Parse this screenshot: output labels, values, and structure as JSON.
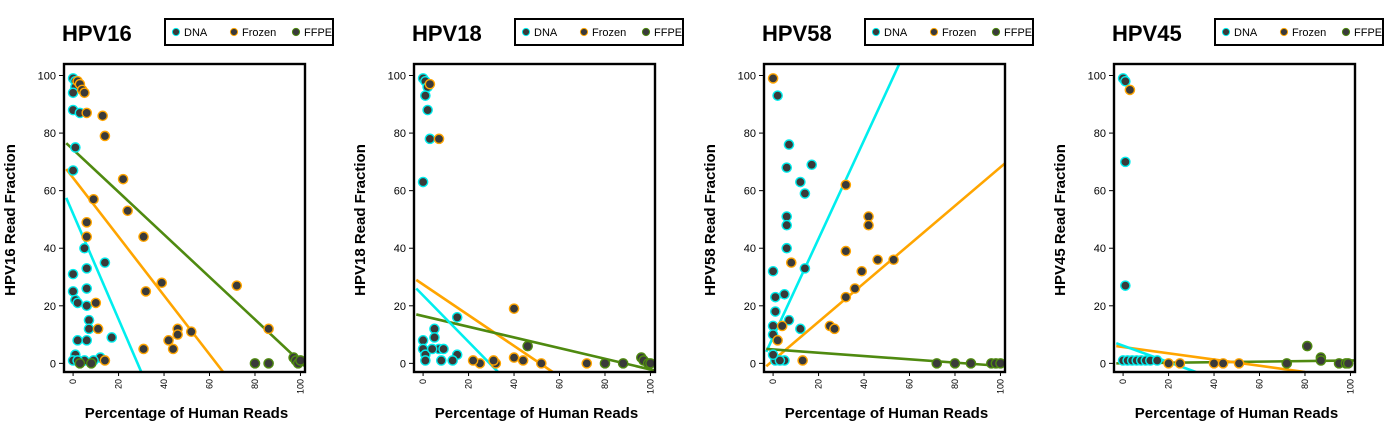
{
  "colors": {
    "DNA": "#00eeee",
    "Frozen": "#ffa500",
    "FFPE": "#4f8a10",
    "point_fill": "#3a3a3a"
  },
  "chart_data": [
    {
      "type": "scatter",
      "title": "HPV16",
      "xlabel": "Percentage of Human Reads",
      "ylabel": "HPV16 Read Fraction",
      "xlim": [
        -4,
        102
      ],
      "ylim": [
        -3,
        104
      ],
      "xticks": [
        0,
        20,
        40,
        60,
        80,
        100
      ],
      "yticks": [
        0,
        20,
        40,
        60,
        80,
        100
      ],
      "legend": [
        "DNA",
        "Frozen",
        "FFPE"
      ],
      "series": [
        {
          "name": "DNA",
          "points": [
            [
              0,
              99
            ],
            [
              1,
              98
            ],
            [
              1,
              96
            ],
            [
              0,
              94
            ],
            [
              0,
              88
            ],
            [
              3,
              87
            ],
            [
              1,
              75
            ],
            [
              0,
              67
            ],
            [
              0,
              31
            ],
            [
              0,
              25
            ],
            [
              1,
              22
            ],
            [
              2,
              21
            ],
            [
              2,
              8
            ],
            [
              1,
              3
            ],
            [
              0,
              1
            ],
            [
              5,
              40
            ],
            [
              6,
              33
            ],
            [
              6,
              26
            ],
            [
              6,
              20
            ],
            [
              7,
              15
            ],
            [
              7,
              12
            ],
            [
              6,
              8
            ],
            [
              5,
              1
            ],
            [
              14,
              35
            ],
            [
              12,
              2
            ],
            [
              17,
              9
            ],
            [
              9,
              1
            ],
            [
              2,
              1
            ]
          ]
        },
        {
          "name": "Frozen",
          "points": [
            [
              2,
              98
            ],
            [
              3,
              97
            ],
            [
              4,
              95
            ],
            [
              5,
              94
            ],
            [
              6,
              87
            ],
            [
              13,
              86
            ],
            [
              14,
              79
            ],
            [
              9,
              57
            ],
            [
              6,
              49
            ],
            [
              6,
              44
            ],
            [
              10,
              21
            ],
            [
              11,
              12
            ],
            [
              22,
              64
            ],
            [
              24,
              53
            ],
            [
              31,
              44
            ],
            [
              32,
              25
            ],
            [
              31,
              5
            ],
            [
              39,
              28
            ],
            [
              42,
              8
            ],
            [
              44,
              5
            ],
            [
              46,
              12
            ],
            [
              46,
              10
            ],
            [
              52,
              11
            ],
            [
              72,
              27
            ],
            [
              86,
              12
            ],
            [
              14,
              1
            ]
          ]
        },
        {
          "name": "FFPE",
          "points": [
            [
              80,
              0
            ],
            [
              86,
              0
            ],
            [
              97,
              2
            ],
            [
              98,
              1
            ],
            [
              99,
              0
            ],
            [
              100,
              1
            ],
            [
              8,
              0
            ],
            [
              3,
              0
            ]
          ]
        }
      ],
      "fits": [
        {
          "name": "FFPE",
          "x": [
            -3,
            102
          ],
          "y": [
            76.5,
            -1
          ]
        },
        {
          "name": "Frozen",
          "x": [
            -3,
            66
          ],
          "y": [
            67.5,
            -3
          ]
        },
        {
          "name": "DNA",
          "x": [
            -3,
            30
          ],
          "y": [
            57.5,
            -3
          ]
        }
      ]
    },
    {
      "type": "scatter",
      "title": "HPV18",
      "xlabel": "Percentage of Human Reads",
      "ylabel": "HPV18 Read Fraction",
      "xlim": [
        -4,
        102
      ],
      "ylim": [
        -3,
        104
      ],
      "xticks": [
        0,
        20,
        40,
        60,
        80,
        100
      ],
      "yticks": [
        0,
        20,
        40,
        60,
        80,
        100
      ],
      "legend": [
        "DNA",
        "Frozen",
        "FFPE"
      ],
      "series": [
        {
          "name": "DNA",
          "points": [
            [
              0,
              99
            ],
            [
              1,
              98
            ],
            [
              2,
              96
            ],
            [
              1,
              93
            ],
            [
              2,
              88
            ],
            [
              3,
              78
            ],
            [
              0,
              63
            ],
            [
              5,
              12
            ],
            [
              5,
              9
            ],
            [
              0,
              8
            ],
            [
              0,
              5
            ],
            [
              1,
              3
            ],
            [
              1,
              1
            ],
            [
              7,
              5
            ],
            [
              9,
              5
            ],
            [
              15,
              3
            ],
            [
              13,
              1
            ],
            [
              15,
              16
            ],
            [
              4,
              5
            ],
            [
              8,
              1
            ]
          ]
        },
        {
          "name": "Frozen",
          "points": [
            [
              7,
              78
            ],
            [
              3,
              97
            ],
            [
              40,
              19
            ],
            [
              44,
              1
            ],
            [
              40,
              2
            ],
            [
              52,
              0
            ],
            [
              32,
              0
            ],
            [
              31,
              1
            ],
            [
              25,
              0
            ],
            [
              22,
              1
            ],
            [
              72,
              0
            ]
          ]
        },
        {
          "name": "FFPE",
          "points": [
            [
              46,
              6
            ],
            [
              80,
              0
            ],
            [
              96,
              2
            ],
            [
              97,
              1
            ],
            [
              99,
              0
            ],
            [
              100,
              0
            ],
            [
              88,
              0
            ]
          ]
        }
      ],
      "fits": [
        {
          "name": "Frozen",
          "x": [
            -3,
            57
          ],
          "y": [
            29,
            -3
          ]
        },
        {
          "name": "FFPE",
          "x": [
            -3,
            102
          ],
          "y": [
            17,
            -2.5
          ]
        },
        {
          "name": "DNA",
          "x": [
            -3,
            33
          ],
          "y": [
            26,
            -3
          ]
        }
      ]
    },
    {
      "type": "scatter",
      "title": "HPV58",
      "xlabel": "Percentage of Human Reads",
      "ylabel": "HPV58 Read Fraction",
      "xlim": [
        -4,
        102
      ],
      "ylim": [
        -3,
        104
      ],
      "xticks": [
        0,
        20,
        40,
        60,
        80,
        100
      ],
      "yticks": [
        0,
        20,
        40,
        60,
        80,
        100
      ],
      "legend": [
        "DNA",
        "Frozen",
        "FFPE"
      ],
      "series": [
        {
          "name": "DNA",
          "points": [
            [
              2,
              93
            ],
            [
              7,
              76
            ],
            [
              12,
              63
            ],
            [
              6,
              68
            ],
            [
              14,
              59
            ],
            [
              17,
              69
            ],
            [
              6,
              51
            ],
            [
              6,
              48
            ],
            [
              6,
              40
            ],
            [
              0,
              32
            ],
            [
              7,
              15
            ],
            [
              1,
              23
            ],
            [
              1,
              18
            ],
            [
              5,
              24
            ],
            [
              12,
              12
            ],
            [
              14,
              33
            ],
            [
              0,
              13
            ],
            [
              0,
              10
            ],
            [
              1,
              1
            ],
            [
              5,
              1
            ],
            [
              3,
              1
            ],
            [
              0,
              3
            ]
          ]
        },
        {
          "name": "Frozen",
          "points": [
            [
              0,
              99
            ],
            [
              32,
              62
            ],
            [
              32,
              39
            ],
            [
              42,
              51
            ],
            [
              42,
              48
            ],
            [
              39,
              32
            ],
            [
              36,
              26
            ],
            [
              32,
              23
            ],
            [
              25,
              13
            ],
            [
              27,
              12
            ],
            [
              46,
              36
            ],
            [
              53,
              36
            ],
            [
              8,
              35
            ],
            [
              4,
              13
            ],
            [
              2,
              8
            ],
            [
              13,
              1
            ]
          ]
        },
        {
          "name": "FFPE",
          "points": [
            [
              72,
              0
            ],
            [
              80,
              0
            ],
            [
              87,
              0
            ],
            [
              96,
              0
            ],
            [
              98,
              0
            ],
            [
              100,
              0
            ]
          ]
        }
      ],
      "fits": [
        {
          "name": "DNA",
          "x": [
            -3,
            55.5
          ],
          "y": [
            4,
            104
          ]
        },
        {
          "name": "Frozen",
          "x": [
            -3,
            102
          ],
          "y": [
            -1,
            69.5
          ]
        },
        {
          "name": "FFPE",
          "x": [
            -3,
            102
          ],
          "y": [
            5,
            -1
          ]
        }
      ]
    },
    {
      "type": "scatter",
      "title": "HPV45",
      "xlabel": "Percentage of Human Reads",
      "ylabel": "HPV45 Read Fraction",
      "xlim": [
        -4,
        102
      ],
      "ylim": [
        -3,
        104
      ],
      "xticks": [
        0,
        20,
        40,
        60,
        80,
        100
      ],
      "yticks": [
        0,
        20,
        40,
        60,
        80,
        100
      ],
      "legend": [
        "DNA",
        "Frozen",
        "FFPE"
      ],
      "series": [
        {
          "name": "DNA",
          "points": [
            [
              0,
              99
            ],
            [
              1,
              98
            ],
            [
              1,
              70
            ],
            [
              1,
              27
            ],
            [
              0,
              1
            ],
            [
              2,
              1
            ],
            [
              4,
              1
            ],
            [
              6,
              1
            ],
            [
              8,
              1
            ],
            [
              10,
              1
            ],
            [
              12,
              1
            ],
            [
              15,
              1
            ]
          ]
        },
        {
          "name": "Frozen",
          "points": [
            [
              3,
              95
            ],
            [
              20,
              0
            ],
            [
              25,
              0
            ],
            [
              40,
              0
            ],
            [
              44,
              0
            ],
            [
              51,
              0
            ]
          ]
        },
        {
          "name": "FFPE",
          "points": [
            [
              81,
              6
            ],
            [
              87,
              2
            ],
            [
              87,
              1
            ],
            [
              72,
              0
            ],
            [
              95,
              0
            ],
            [
              98,
              0
            ],
            [
              99,
              0
            ]
          ]
        }
      ],
      "fits": [
        {
          "name": "FFPE",
          "x": [
            -3,
            102
          ],
          "y": [
            0,
            1
          ]
        },
        {
          "name": "Frozen",
          "x": [
            -3,
            80
          ],
          "y": [
            6,
            -3
          ]
        },
        {
          "name": "DNA",
          "x": [
            -3,
            32
          ],
          "y": [
            7,
            -3
          ]
        }
      ]
    }
  ]
}
